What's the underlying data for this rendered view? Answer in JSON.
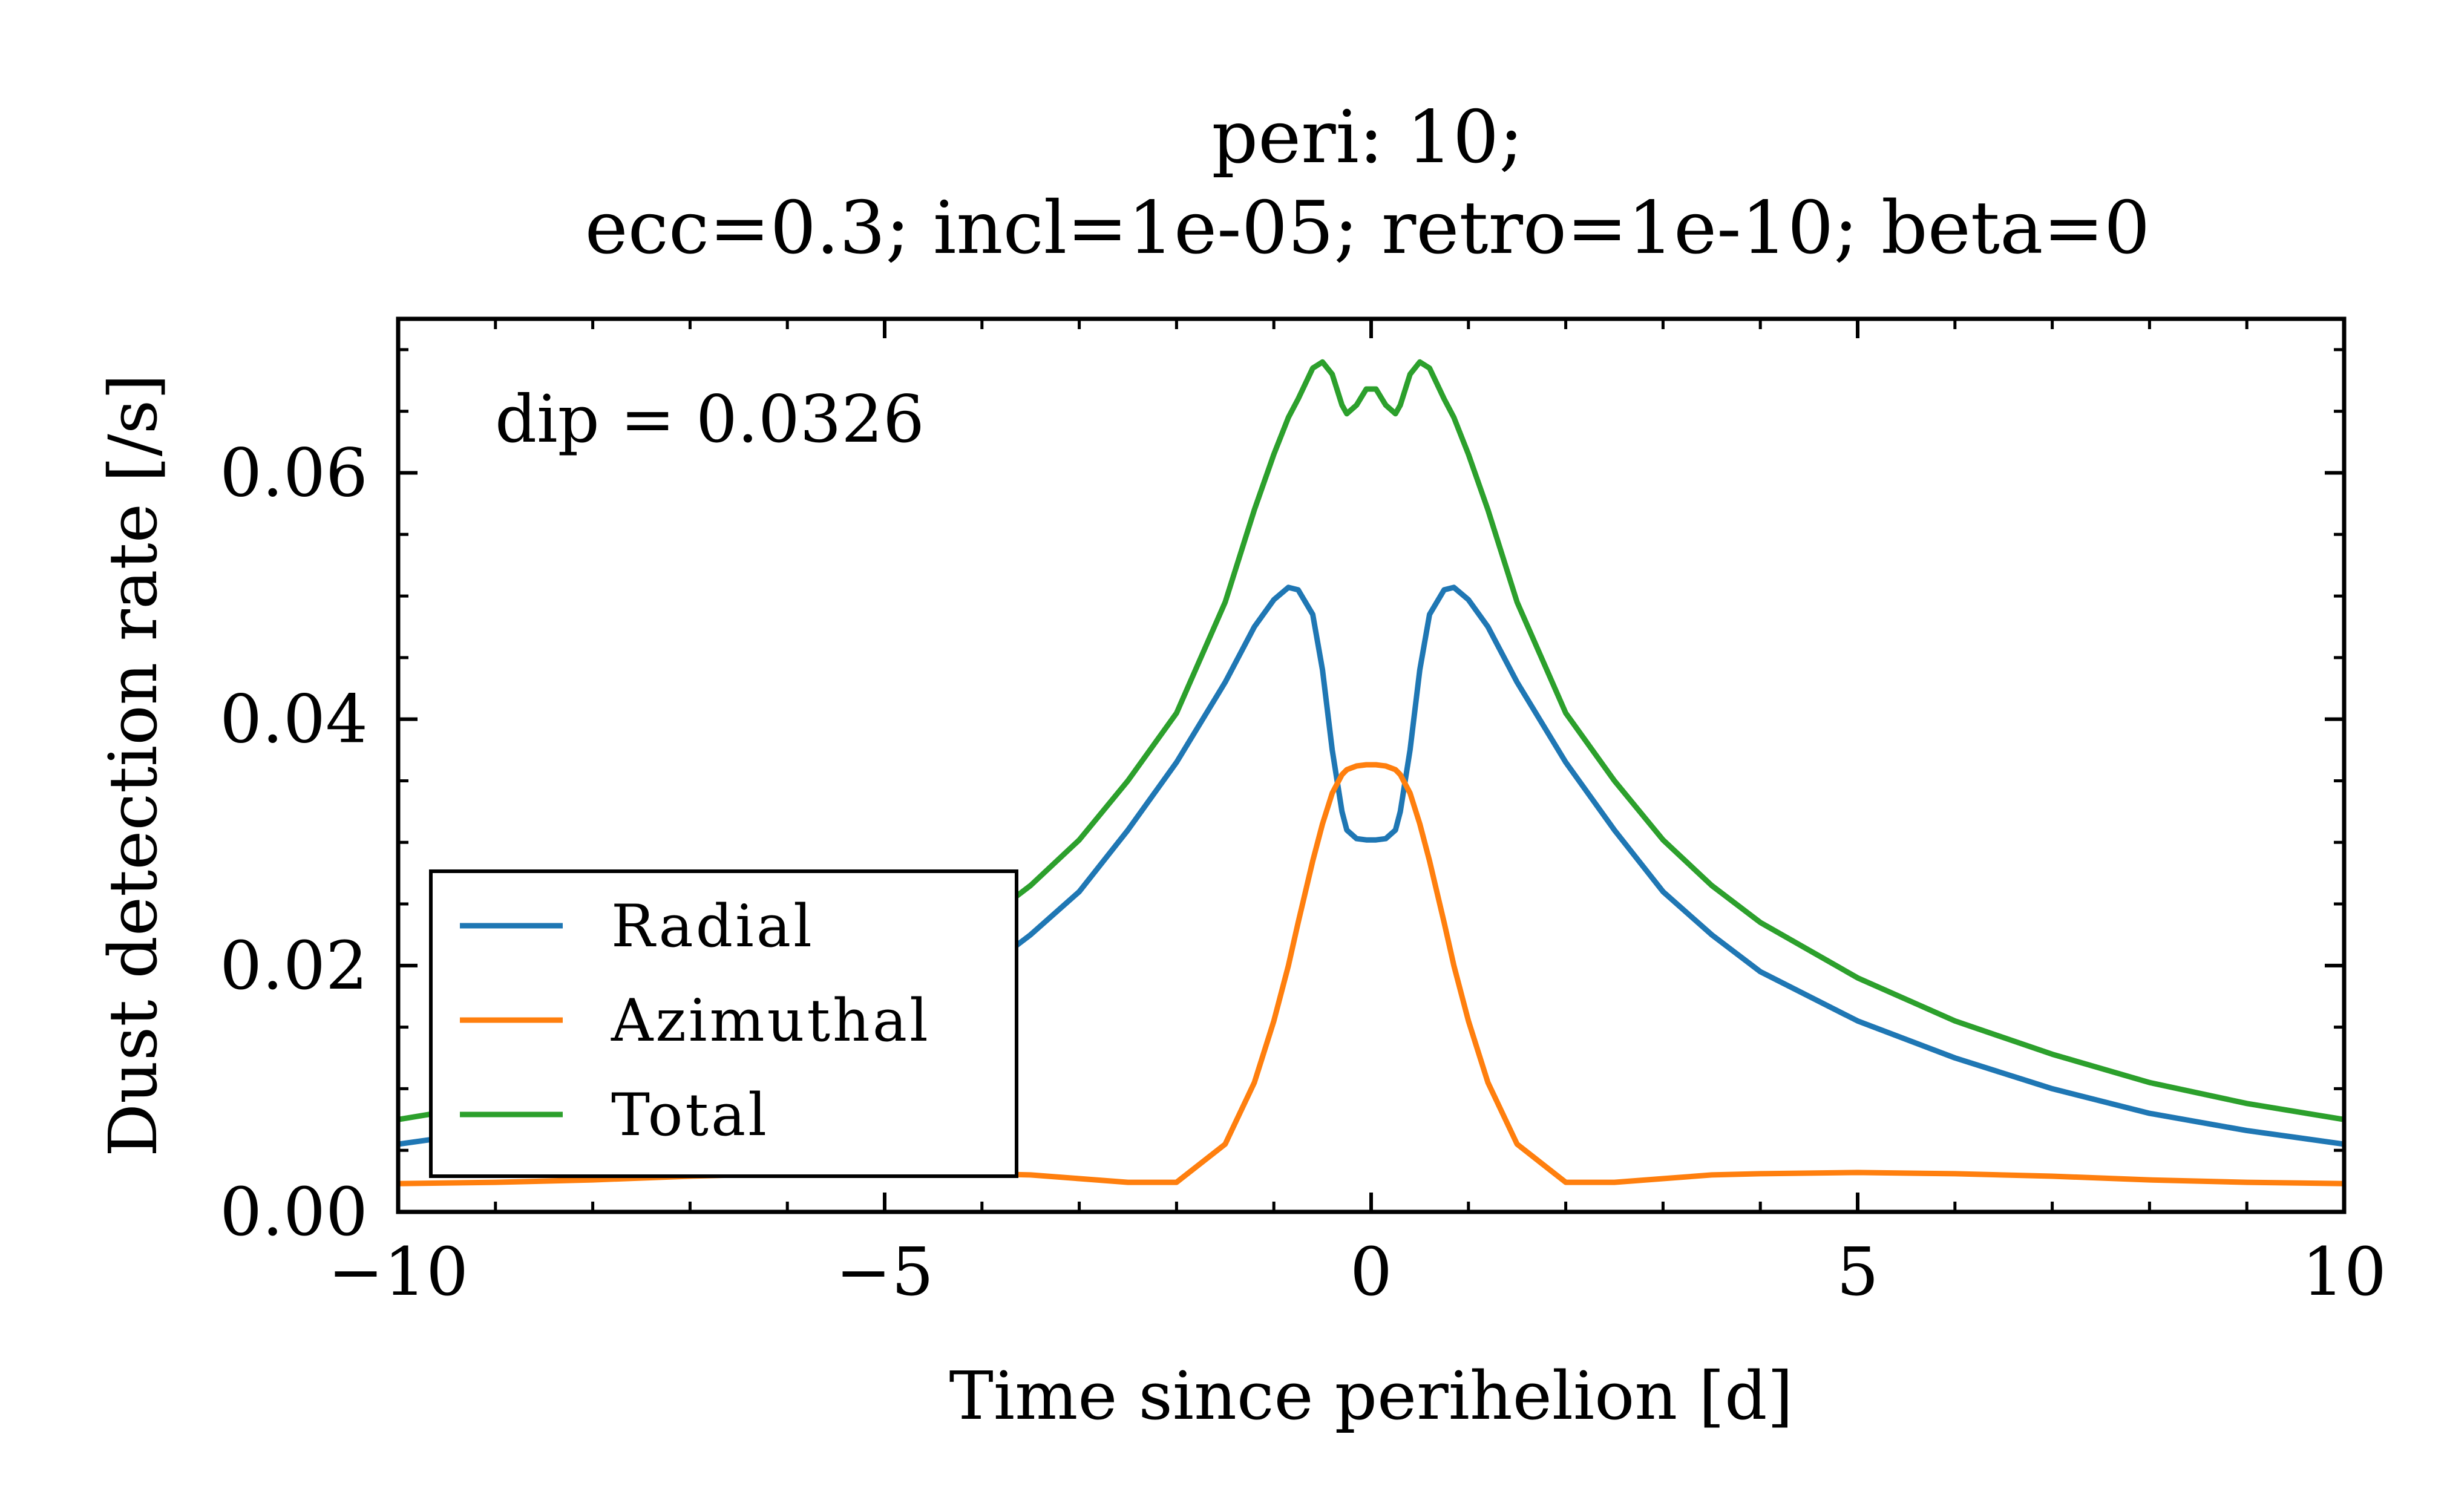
{
  "chart_data": {
    "type": "line",
    "title_line1": "peri: 10;",
    "title_line2": "ecc=0.3; incl=1e-05; retro=1e-10; beta=0",
    "xlabel": "Time since perihelion [d]",
    "ylabel": "Dust detection rate [/s]",
    "xlim": [
      -10,
      10
    ],
    "ylim": [
      0,
      0.0725
    ],
    "xticks": [
      -10,
      -5,
      0,
      5,
      10
    ],
    "xtick_labels": [
      "−10",
      "−5",
      "0",
      "5",
      "10"
    ],
    "yticks": [
      0.0,
      0.02,
      0.04,
      0.06
    ],
    "ytick_labels": [
      "0.00",
      "0.02",
      "0.04",
      "0.06"
    ],
    "annotation": "dip = 0.0326",
    "legend_position": "lower-left",
    "grid": false,
    "x": [
      -10,
      -9,
      -8,
      -7,
      -6,
      -5,
      -4,
      -3.5,
      -3,
      -2.5,
      -2,
      -1.5,
      -1.2,
      -1.0,
      -0.85,
      -0.75,
      -0.6,
      -0.5,
      -0.4,
      -0.3,
      -0.25,
      -0.15,
      -0.05,
      0,
      0.05,
      0.15,
      0.25,
      0.3,
      0.4,
      0.5,
      0.6,
      0.75,
      0.85,
      1.0,
      1.2,
      1.5,
      2,
      2.5,
      3,
      3.5,
      4,
      5,
      6,
      7,
      8,
      9,
      10
    ],
    "series": [
      {
        "name": "Radial",
        "color": "#1f77b4",
        "values": [
          0.0055,
          0.0066,
          0.008,
          0.01,
          0.0125,
          0.0155,
          0.0195,
          0.0225,
          0.026,
          0.031,
          0.0365,
          0.043,
          0.0475,
          0.0497,
          0.0507,
          0.0505,
          0.0485,
          0.044,
          0.0375,
          0.0325,
          0.031,
          0.0303,
          0.0302,
          0.0302,
          0.0302,
          0.0303,
          0.031,
          0.0325,
          0.0375,
          0.044,
          0.0485,
          0.0505,
          0.0507,
          0.0497,
          0.0475,
          0.043,
          0.0365,
          0.031,
          0.026,
          0.0225,
          0.0195,
          0.0155,
          0.0125,
          0.01,
          0.008,
          0.0066,
          0.0055
        ]
      },
      {
        "name": "Azimuthal",
        "color": "#ff7f0e",
        "values": [
          0.0023,
          0.0024,
          0.0026,
          0.0029,
          0.0031,
          0.0032,
          0.0031,
          0.003,
          0.0027,
          0.0024,
          0.0024,
          0.0055,
          0.0105,
          0.0155,
          0.02,
          0.0235,
          0.0285,
          0.0315,
          0.034,
          0.0355,
          0.0359,
          0.0362,
          0.0363,
          0.0363,
          0.0363,
          0.0362,
          0.0359,
          0.0355,
          0.034,
          0.0315,
          0.0285,
          0.0235,
          0.02,
          0.0155,
          0.0105,
          0.0055,
          0.0024,
          0.0024,
          0.0027,
          0.003,
          0.0031,
          0.0032,
          0.0031,
          0.0029,
          0.0026,
          0.0024,
          0.0023
        ]
      },
      {
        "name": "Total",
        "color": "#2ca02c",
        "values": [
          0.0075,
          0.0088,
          0.0105,
          0.0128,
          0.0155,
          0.019,
          0.0235,
          0.0265,
          0.0302,
          0.035,
          0.0405,
          0.0495,
          0.057,
          0.0615,
          0.0645,
          0.066,
          0.0685,
          0.069,
          0.068,
          0.0655,
          0.0648,
          0.0655,
          0.0668,
          0.0668,
          0.0668,
          0.0655,
          0.0648,
          0.0655,
          0.068,
          0.069,
          0.0685,
          0.066,
          0.0645,
          0.0615,
          0.057,
          0.0495,
          0.0405,
          0.035,
          0.0302,
          0.0265,
          0.0235,
          0.019,
          0.0155,
          0.0128,
          0.0105,
          0.0088,
          0.0075
        ]
      }
    ]
  }
}
